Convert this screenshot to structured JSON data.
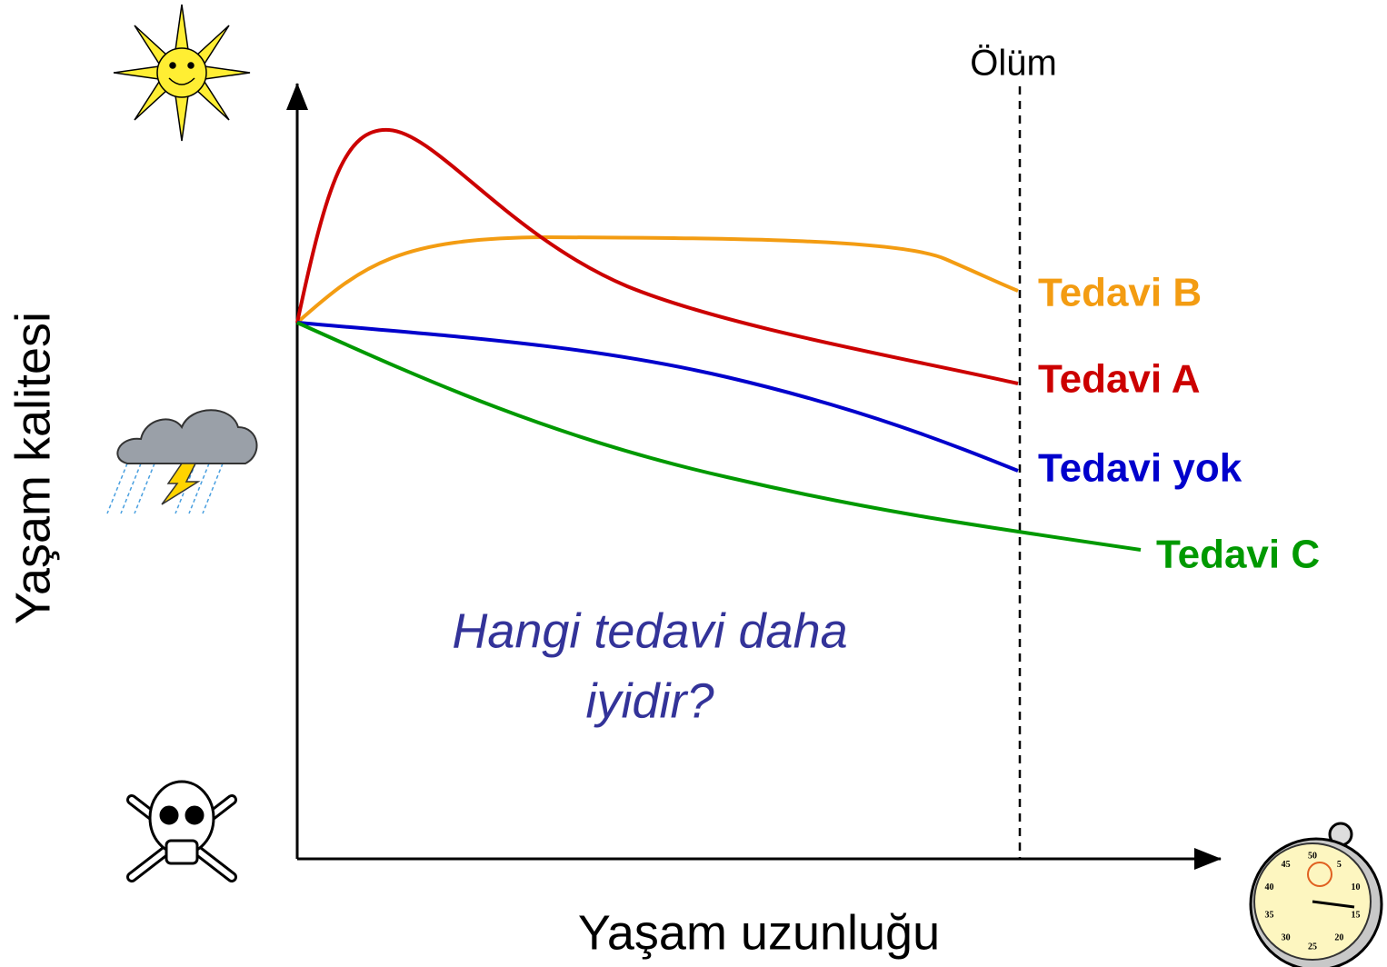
{
  "axes": {
    "y_label": "Yaşam kalitesi",
    "x_label": "Yaşam uzunluğu",
    "marker_label": "Ölüm"
  },
  "curves": [
    {
      "label": "Tedavi B",
      "color": "#f39c12"
    },
    {
      "label": "Tedavi A",
      "color": "#cc0000"
    },
    {
      "label": "Tedavi yok",
      "color": "#0000cc"
    },
    {
      "label": "Tedavi C",
      "color": "#009900"
    }
  ],
  "question": {
    "lines": [
      "Hangi tedavi daha",
      "iyidir?"
    ],
    "color": "#333399"
  },
  "stopwatch_labels": [
    "5",
    "10",
    "15",
    "20",
    "25",
    "30",
    "35",
    "40",
    "45",
    "50"
  ]
}
